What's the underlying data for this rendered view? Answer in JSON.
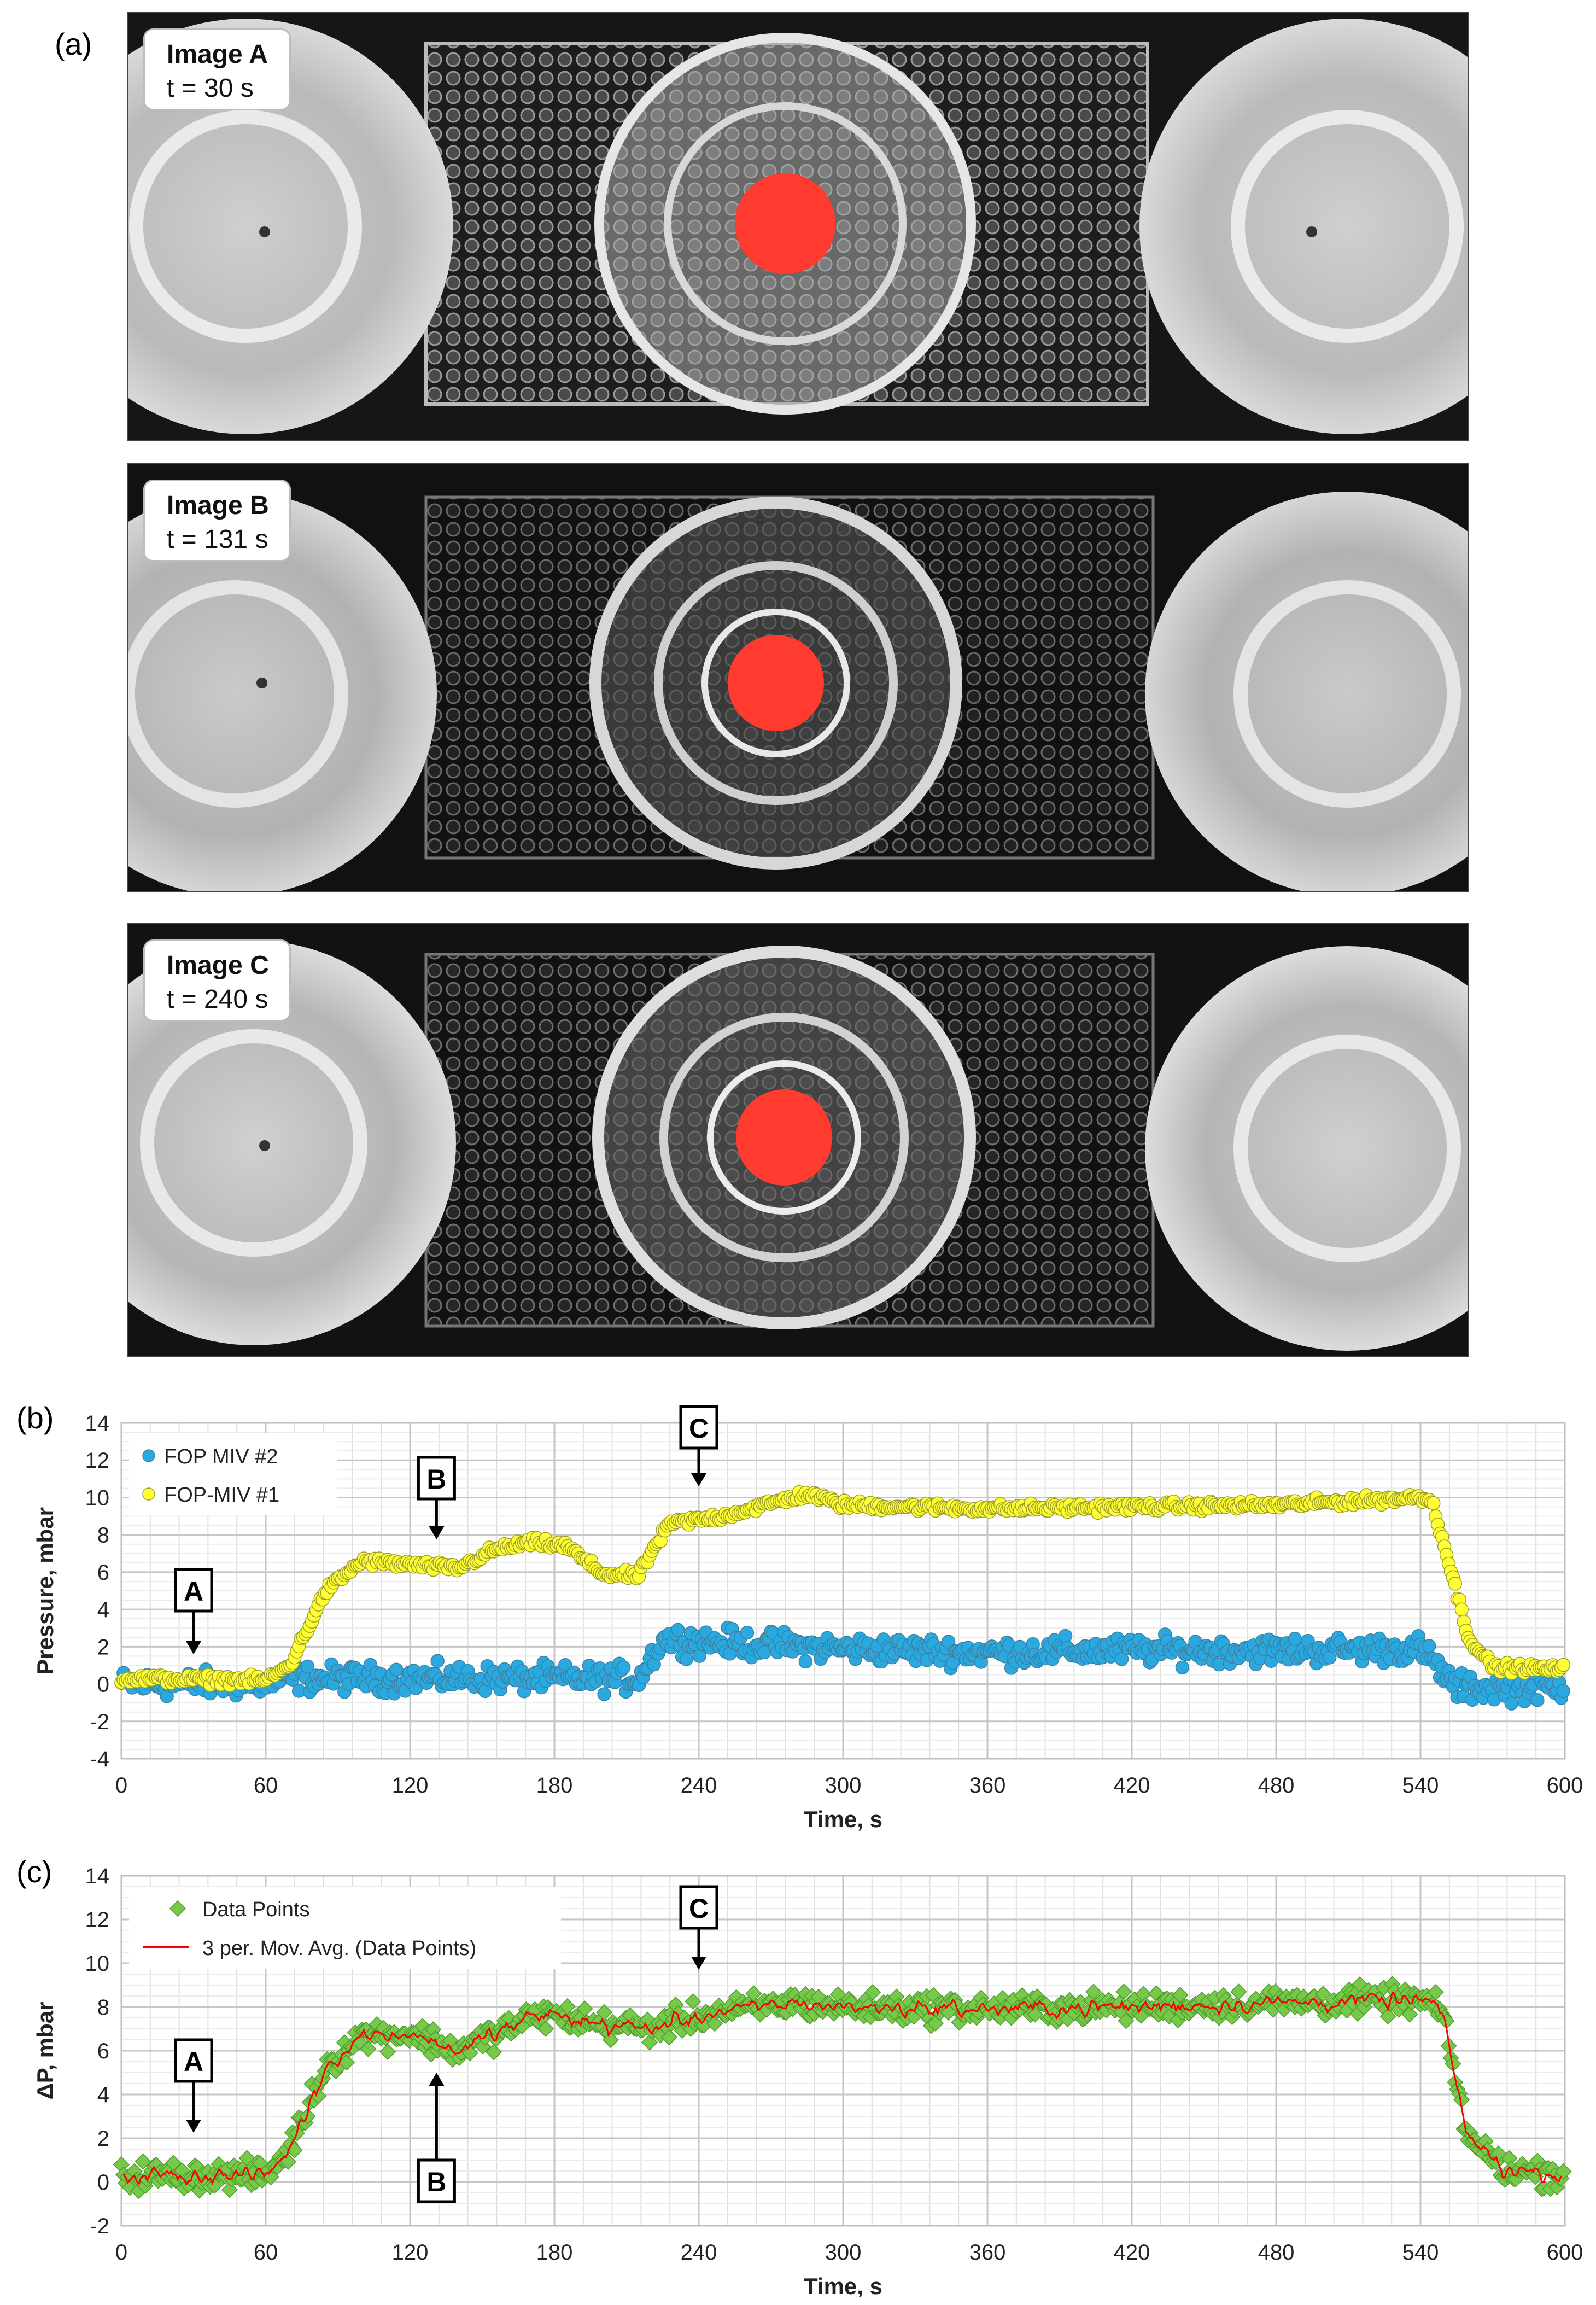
{
  "panels": {
    "a_label": "(a)",
    "b_label": "(b)",
    "c_label": "(c)"
  },
  "images": [
    {
      "name": "Image A",
      "time": "t = 30 s"
    },
    {
      "name": "Image B",
      "time": "t = 131 s"
    },
    {
      "name": "Image C",
      "time": "t = 240 s"
    }
  ],
  "colors": {
    "blue_series": "#29a9e0",
    "yellow_series": "#ffff33",
    "green_series": "#77c94a",
    "red_line": "#ff0000",
    "drop": "#ff3a2e"
  },
  "chart_data": [
    {
      "type": "scatter",
      "title": "",
      "xlabel": "Time, s",
      "ylabel": "Pressure, mbar",
      "xlim": [
        0,
        600
      ],
      "ylim": [
        -4,
        14
      ],
      "xticks": [
        0,
        60,
        120,
        180,
        240,
        300,
        360,
        420,
        480,
        540,
        600
      ],
      "yticks": [
        -4,
        -2,
        0,
        2,
        4,
        6,
        8,
        10,
        12,
        14
      ],
      "legend_position": "top-left",
      "series": [
        {
          "name": "FOP MIV #2",
          "color": "#29a9e0",
          "x": [
            0,
            60,
            70,
            215,
            225,
            300,
            360,
            420,
            480,
            540,
            555,
            600
          ],
          "y": [
            0.0,
            0.0,
            0.3,
            0.3,
            2.4,
            1.9,
            1.7,
            1.8,
            1.8,
            1.9,
            -0.2,
            -0.2
          ]
        },
        {
          "name": "FOP-MIV #1",
          "color": "#ffff33",
          "x": [
            0,
            60,
            70,
            85,
            100,
            120,
            140,
            155,
            170,
            185,
            200,
            215,
            220,
            228,
            250,
            285,
            300,
            360,
            420,
            480,
            540,
            545,
            560,
            570,
            600
          ],
          "y": [
            0.3,
            0.2,
            1.0,
            5.0,
            6.6,
            6.4,
            6.2,
            7.2,
            7.6,
            7.4,
            5.9,
            5.8,
            7.0,
            8.6,
            9.0,
            10.2,
            9.6,
            9.4,
            9.5,
            9.6,
            10.0,
            9.8,
            2.5,
            0.9,
            0.8
          ]
        }
      ],
      "markers": [
        {
          "label": "A",
          "x": 30
        },
        {
          "label": "B",
          "x": 131
        },
        {
          "label": "C",
          "x": 240
        }
      ]
    },
    {
      "type": "scatter",
      "title": "",
      "xlabel": "Time, s",
      "ylabel": "ΔP, mbar",
      "xlim": [
        0,
        600
      ],
      "ylim": [
        -2,
        14
      ],
      "xticks": [
        0,
        60,
        120,
        180,
        240,
        300,
        360,
        420,
        480,
        540,
        600
      ],
      "yticks": [
        -2,
        0,
        2,
        4,
        6,
        8,
        10,
        12,
        14
      ],
      "legend_position": "top-left",
      "series": [
        {
          "name": "Data Points",
          "color": "#77c94a",
          "x": [
            0,
            60,
            70,
            85,
            100,
            120,
            140,
            160,
            175,
            200,
            220,
            240,
            280,
            300,
            360,
            420,
            480,
            540,
            548,
            560,
            575,
            600
          ],
          "y": [
            0.3,
            0.3,
            1.5,
            5.3,
            6.7,
            6.8,
            6.0,
            7.0,
            7.7,
            7.2,
            7.0,
            7.6,
            8.2,
            8.0,
            7.9,
            8.0,
            8.2,
            8.3,
            8.0,
            2.0,
            0.6,
            0.3
          ]
        },
        {
          "name": "3 per. Mov. Avg. (Data Points)",
          "color": "#ff0000",
          "style": "line"
        }
      ],
      "markers": [
        {
          "label": "A",
          "x": 30
        },
        {
          "label": "B",
          "x": 131
        },
        {
          "label": "C",
          "x": 240
        }
      ]
    }
  ]
}
